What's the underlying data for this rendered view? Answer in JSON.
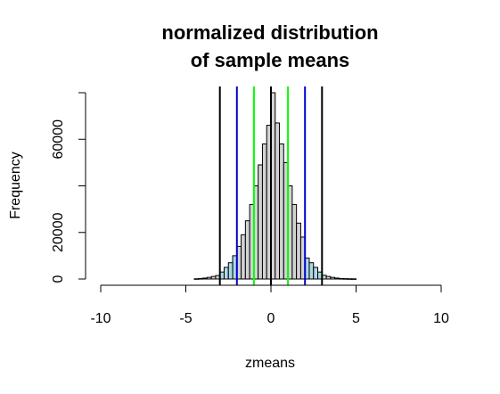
{
  "chart_data": {
    "type": "bar",
    "title": [
      "normalized distribution",
      "of sample means"
    ],
    "xlabel": "zmeans",
    "ylabel": "Frequency",
    "xlim": [
      -10,
      10
    ],
    "ylim": [
      0,
      80000
    ],
    "xticks": [
      -10,
      -5,
      0,
      5,
      10
    ],
    "yticks": [
      0,
      20000,
      40000,
      60000,
      80000
    ],
    "ytick_labels": [
      "0",
      "20000",
      "",
      "60000",
      ""
    ],
    "bin_width": 0.25,
    "bins": [
      {
        "x0": -4.5,
        "value": 100,
        "fill": "#d3d3d3"
      },
      {
        "x0": -4.25,
        "value": 200,
        "fill": "#d3d3d3"
      },
      {
        "x0": -4.0,
        "value": 400,
        "fill": "#d3d3d3"
      },
      {
        "x0": -3.75,
        "value": 700,
        "fill": "#d3d3d3"
      },
      {
        "x0": -3.5,
        "value": 1100,
        "fill": "#d3d3d3"
      },
      {
        "x0": -3.25,
        "value": 1500,
        "fill": "#d3d3d3"
      },
      {
        "x0": -3.0,
        "value": 3000,
        "fill": "#add8e6"
      },
      {
        "x0": -2.75,
        "value": 5000,
        "fill": "#add8e6"
      },
      {
        "x0": -2.5,
        "value": 7000,
        "fill": "#add8e6"
      },
      {
        "x0": -2.25,
        "value": 10000,
        "fill": "#add8e6"
      },
      {
        "x0": -2.0,
        "value": 14000,
        "fill": "#d3d3d3"
      },
      {
        "x0": -1.75,
        "value": 19000,
        "fill": "#d3d3d3"
      },
      {
        "x0": -1.5,
        "value": 25000,
        "fill": "#d3d3d3"
      },
      {
        "x0": -1.25,
        "value": 32000,
        "fill": "#d3d3d3"
      },
      {
        "x0": -1.0,
        "value": 40000,
        "fill": "#d3d3d3"
      },
      {
        "x0": -0.75,
        "value": 49000,
        "fill": "#d3d3d3"
      },
      {
        "x0": -0.5,
        "value": 58000,
        "fill": "#d3d3d3"
      },
      {
        "x0": -0.25,
        "value": 66000,
        "fill": "#d3d3d3"
      },
      {
        "x0": 0.0,
        "value": 80000,
        "fill": "#d3d3d3"
      },
      {
        "x0": 0.25,
        "value": 67000,
        "fill": "#d3d3d3"
      },
      {
        "x0": 0.5,
        "value": 58000,
        "fill": "#d3d3d3"
      },
      {
        "x0": 0.75,
        "value": 50000,
        "fill": "#d3d3d3"
      },
      {
        "x0": 1.0,
        "value": 40000,
        "fill": "#d3d3d3"
      },
      {
        "x0": 1.25,
        "value": 32000,
        "fill": "#d3d3d3"
      },
      {
        "x0": 1.5,
        "value": 24000,
        "fill": "#d3d3d3"
      },
      {
        "x0": 1.75,
        "value": 18000,
        "fill": "#d3d3d3"
      },
      {
        "x0": 2.0,
        "value": 9000,
        "fill": "#add8e6"
      },
      {
        "x0": 2.25,
        "value": 7000,
        "fill": "#add8e6"
      },
      {
        "x0": 2.5,
        "value": 5000,
        "fill": "#add8e6"
      },
      {
        "x0": 2.75,
        "value": 3000,
        "fill": "#add8e6"
      },
      {
        "x0": 3.0,
        "value": 1600,
        "fill": "#d3d3d3"
      },
      {
        "x0": 3.25,
        "value": 1100,
        "fill": "#d3d3d3"
      },
      {
        "x0": 3.5,
        "value": 700,
        "fill": "#d3d3d3"
      },
      {
        "x0": 3.75,
        "value": 400,
        "fill": "#d3d3d3"
      },
      {
        "x0": 4.0,
        "value": 200,
        "fill": "#d3d3d3"
      },
      {
        "x0": 4.25,
        "value": 150,
        "fill": "#d3d3d3"
      },
      {
        "x0": 4.5,
        "value": 100,
        "fill": "#d3d3d3"
      },
      {
        "x0": 4.75,
        "value": 80,
        "fill": "#d3d3d3"
      }
    ],
    "vlines": [
      {
        "x": -3,
        "color": "#000000"
      },
      {
        "x": 3,
        "color": "#000000"
      },
      {
        "x": -2,
        "color": "#0000cd"
      },
      {
        "x": 2,
        "color": "#0000cd"
      },
      {
        "x": -1,
        "color": "#00ff00"
      },
      {
        "x": 1,
        "color": "#00ff00"
      },
      {
        "x": 0,
        "color": "#000000"
      }
    ]
  }
}
